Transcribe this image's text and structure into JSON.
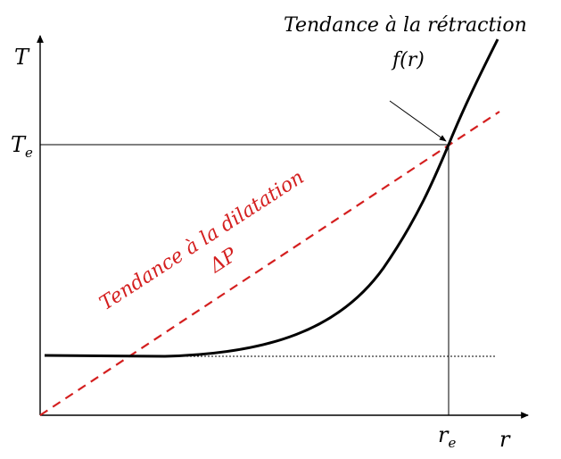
{
  "axes": {
    "y_label": "T",
    "y_mark_main": "T",
    "y_mark_sub": "e",
    "x_label": "r",
    "x_mark_main": "r",
    "x_mark_sub": "e"
  },
  "curve_label": {
    "title": "Tendance à la rétraction",
    "func": "f(r)"
  },
  "line_label": {
    "title": "Tendance à la dilatation",
    "symbol": "ΔP"
  },
  "colors": {
    "axes": "#000000",
    "curve": "#000000",
    "dashed_line": "#d41f1f"
  }
}
